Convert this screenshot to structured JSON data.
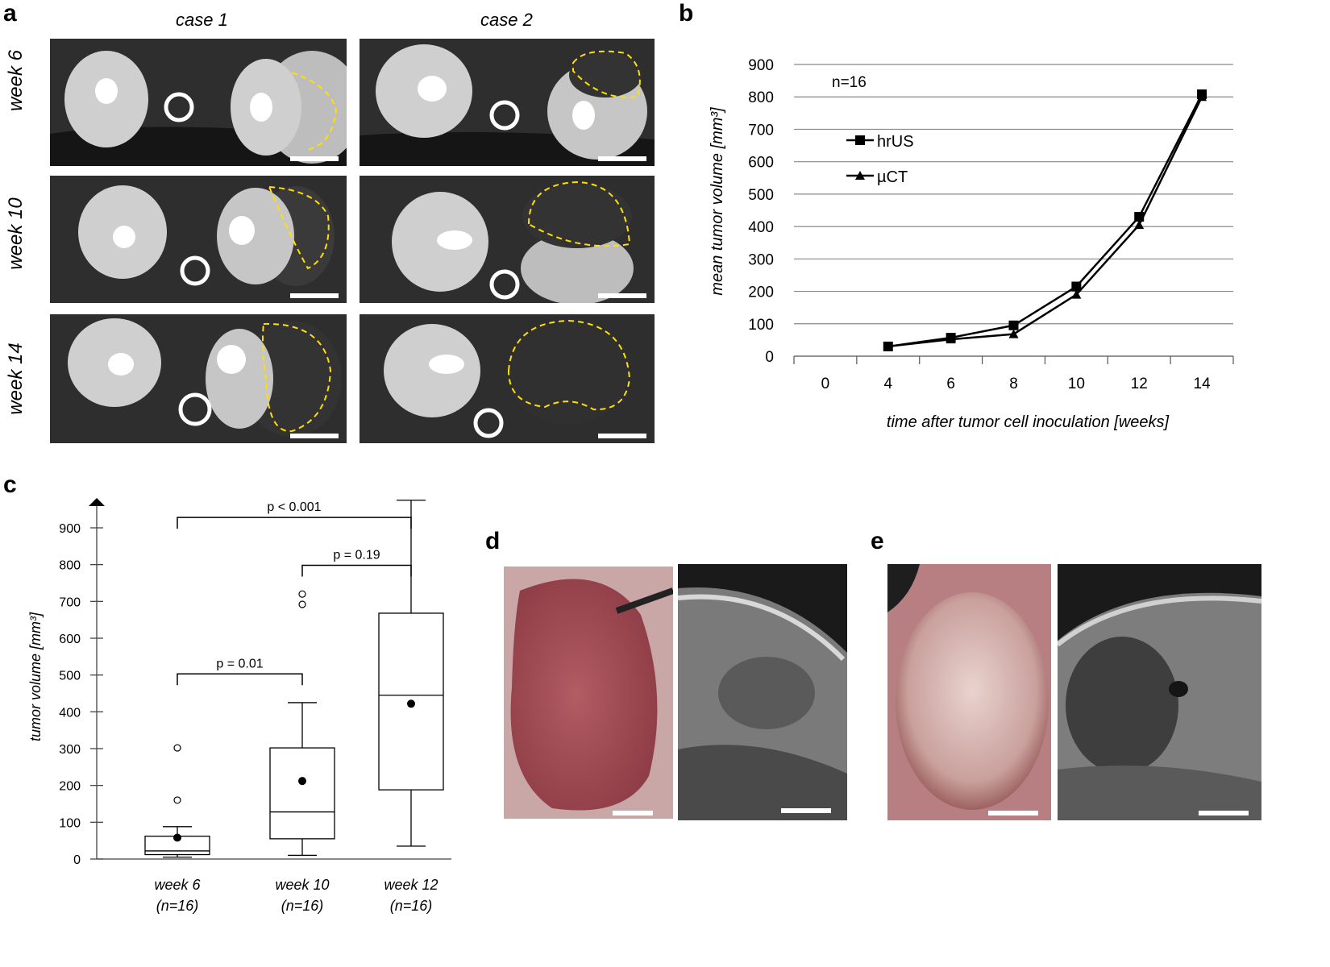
{
  "panel_labels": {
    "a": "a",
    "b": "b",
    "c": "c",
    "d": "d",
    "e": "e"
  },
  "panel_a": {
    "columns": [
      "case 1",
      "case 2"
    ],
    "rows": [
      "week 6",
      "week 10",
      "week 14"
    ]
  },
  "chart_data": [
    {
      "type": "line",
      "panel": "b",
      "xlabel": "time after tumor cell inoculation [weeks]",
      "ylabel": "mean tumor volume [mm³]",
      "x_ticks": [
        "0",
        "4",
        "6",
        "8",
        "10",
        "12",
        "14"
      ],
      "y_ticks": [
        "0",
        "100",
        "200",
        "300",
        "400",
        "500",
        "600",
        "700",
        "800",
        "900"
      ],
      "ylim": [
        0,
        900
      ],
      "annotation": "n=16",
      "grid": true,
      "legend_position": "upper-left",
      "series": [
        {
          "name": "hrUS",
          "marker": "square",
          "x": [
            4,
            6,
            8,
            10,
            12,
            14
          ],
          "values": [
            30,
            57,
            95,
            215,
            430,
            808
          ]
        },
        {
          "name": "µCT",
          "marker": "triangle",
          "x": [
            4,
            6,
            8,
            10,
            12,
            14
          ],
          "values": [
            30,
            52,
            68,
            190,
            405,
            800
          ]
        }
      ]
    },
    {
      "type": "box",
      "panel": "c",
      "ylabel": "tumor volume [mm³]",
      "y_ticks": [
        "0",
        "100",
        "200",
        "300",
        "400",
        "500",
        "600",
        "700",
        "800",
        "900"
      ],
      "ylim": [
        0,
        950
      ],
      "categories": [
        "week 6",
        "week 10",
        "week 12"
      ],
      "sublabels": [
        "(n=16)",
        "(n=16)",
        "(n=16)"
      ],
      "boxes": [
        {
          "whisker_low": 5,
          "q1": 12,
          "median": 22,
          "q3": 62,
          "whisker_high": 88,
          "mean": 58,
          "outliers": [
            160,
            302
          ]
        },
        {
          "whisker_low": 10,
          "q1": 55,
          "median": 128,
          "q3": 302,
          "whisker_high": 425,
          "mean": 212,
          "outliers": [
            692,
            720
          ]
        },
        {
          "whisker_low": 35,
          "q1": 188,
          "median": 445,
          "q3": 668,
          "whisker_high": 975,
          "mean": 422,
          "outliers": []
        }
      ],
      "significance": [
        {
          "from": 0,
          "to": 2,
          "label": "p < 0.001",
          "level": 950
        },
        {
          "from": 1,
          "to": 2,
          "label": "p = 0.19",
          "level": 820
        },
        {
          "from": 0,
          "to": 1,
          "label": "p = 0.01",
          "level": 525
        }
      ]
    }
  ],
  "colors": {
    "outline": "#ffe000",
    "grid": "#888888",
    "ct_bg": "#2b2b2b",
    "kidney": "#d9d9d9"
  }
}
